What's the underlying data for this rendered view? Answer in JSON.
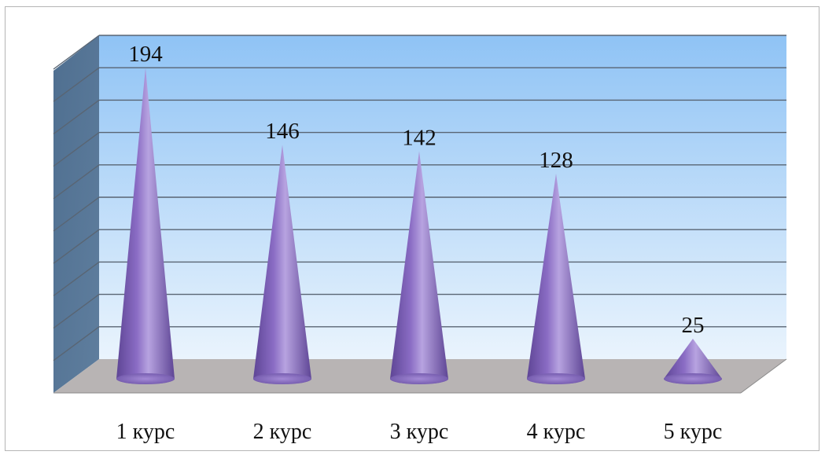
{
  "chart_data": {
    "type": "bar",
    "shape": "cone-3d",
    "categories": [
      "1 курс",
      "2 курс",
      "3 курс",
      "4 курс",
      "5 курс"
    ],
    "values": [
      194,
      146,
      142,
      128,
      25
    ],
    "data_labels": [
      "194",
      "146",
      "142",
      "128",
      "25"
    ],
    "ylim": [
      0,
      200
    ],
    "grid": true,
    "legend": "none",
    "colors": {
      "cone": "#8a6cc4",
      "cone_dark": "#5e4595",
      "wall_top": "#8fc3f5",
      "wall_bottom": "#eaf4fd",
      "side_wall": "#5f7e9e",
      "floor": "#b8b4b4",
      "gridline": "#596573"
    }
  }
}
